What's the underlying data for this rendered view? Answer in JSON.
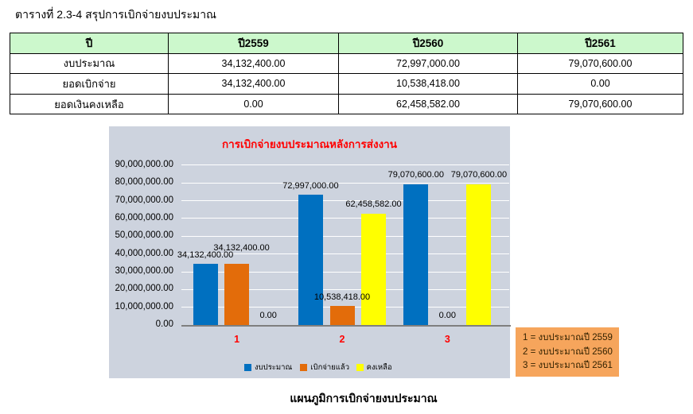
{
  "page": {
    "doc_title": "ตารางที่ 2.3-4 สรุปการเบิกจ่ายงบประมาณ",
    "chart_caption": "แผนภูมิการเบิกจ่ายงบประมาณ"
  },
  "table": {
    "header_bg": "#ccf8cc",
    "header": [
      "ปี",
      "ปี2559",
      "ปี2560",
      "ปี2561"
    ],
    "rows": [
      [
        "งบประมาณ",
        "34,132,400.00",
        "72,997,000.00",
        "79,070,600.00"
      ],
      [
        "ยอดเบิกจ่าย",
        "34,132,400.00",
        "10,538,418.00",
        "0.00"
      ],
      [
        "ยอดเงินคงเหลือ",
        "0.00",
        "62,458,582.00",
        "79,070,600.00"
      ]
    ]
  },
  "chart_data": {
    "type": "bar",
    "title": "การเบิกจ่ายงบประมาณหลังการส่งงาน",
    "title_color": "#ff0000",
    "background": "#cdd3de",
    "grid": true,
    "gridline_color": "#ffffff",
    "axis_color": "#7f7f7f",
    "category_label_color": "#ff0000",
    "categories": [
      "1",
      "2",
      "3"
    ],
    "series": [
      {
        "name": "งบประมาณ",
        "color": "#0070c0",
        "values": [
          34132400,
          72997000,
          79070600
        ],
        "labels": [
          "34,132,400.00",
          "72,997,000.00",
          "79,070,600.00"
        ]
      },
      {
        "name": "เบิกจ่ายแล้ว",
        "color": "#e36c0a",
        "values": [
          34132400,
          10538418,
          0
        ],
        "labels": [
          "34,132,400.00",
          "10,538,418.00",
          "0.00"
        ]
      },
      {
        "name": "คงเหลือ",
        "color": "#ffff00",
        "values": [
          0,
          62458582,
          79070600
        ],
        "labels": [
          "0.00",
          "62,458,582.00",
          "79,070,600.00"
        ]
      }
    ],
    "ylim": [
      0,
      90000000
    ],
    "ytick_labels": [
      "0.00",
      "10,000,000.00",
      "20,000,000.00",
      "30,000,000.00",
      "40,000,000.00",
      "50,000,000.00",
      "60,000,000.00",
      "70,000,000.00",
      "80,000,000.00",
      "90,000,000.00"
    ],
    "legend_position": "bottom"
  },
  "note_box": {
    "bg": "#f6a55c",
    "lines": [
      "1 = งบประมาณปี 2559",
      "2 = งบประมาณปี 2560",
      "3 = งบประมาณปี 2561"
    ]
  }
}
